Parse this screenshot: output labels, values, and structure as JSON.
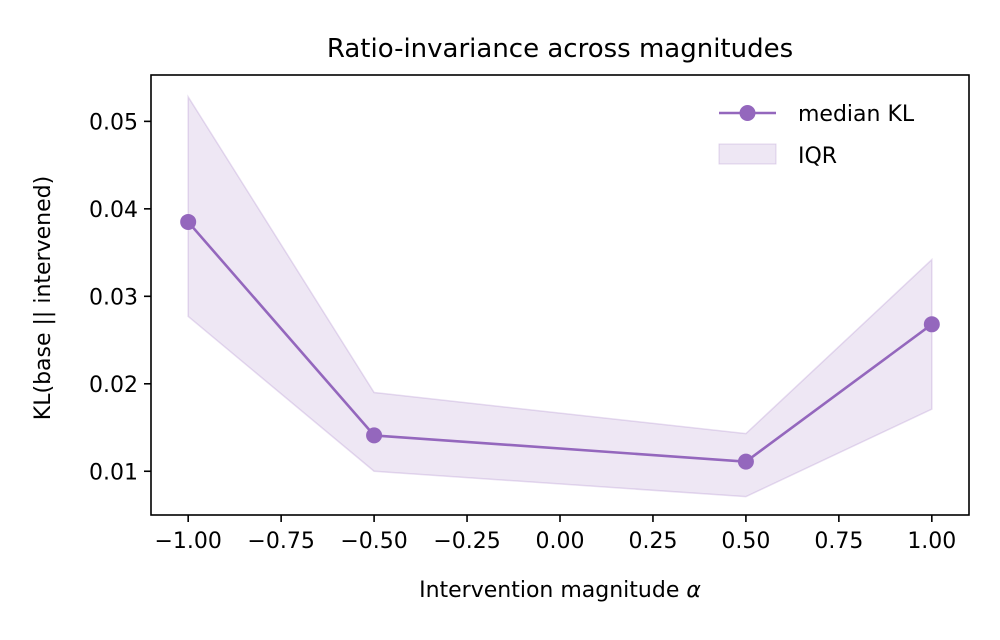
{
  "chart_data": {
    "type": "line",
    "title": "Ratio-invariance across magnitudes",
    "xlabel": "Intervention magnitude",
    "xlabel_symbol": "α",
    "ylabel": "KL(base || intervened)",
    "xlim": [
      -1.1,
      1.1
    ],
    "ylim": [
      0.005,
      0.0553
    ],
    "x_ticks": [
      -1.0,
      -0.75,
      -0.5,
      -0.25,
      0.0,
      0.25,
      0.5,
      0.75,
      1.0
    ],
    "x_tick_labels": [
      "−1.00",
      "−0.75",
      "−0.50",
      "−0.25",
      "0.00",
      "0.25",
      "0.50",
      "0.75",
      "1.00"
    ],
    "y_ticks": [
      0.01,
      0.02,
      0.03,
      0.04,
      0.05
    ],
    "y_tick_labels": [
      "0.01",
      "0.02",
      "0.03",
      "0.04",
      "0.05"
    ],
    "grid": false,
    "legend_position": "top-right",
    "x": [
      -1.0,
      -0.5,
      0.5,
      1.0
    ],
    "series": [
      {
        "name": "median KL",
        "values": [
          0.0385,
          0.0141,
          0.0111,
          0.0268
        ],
        "color": "#9467bd"
      }
    ],
    "band": {
      "name": "IQR",
      "lower": [
        0.0277,
        0.01,
        0.0071,
        0.0171
      ],
      "upper": [
        0.0528,
        0.019,
        0.0143,
        0.0342
      ],
      "color": "#9467bd",
      "opacity": 0.16
    }
  }
}
